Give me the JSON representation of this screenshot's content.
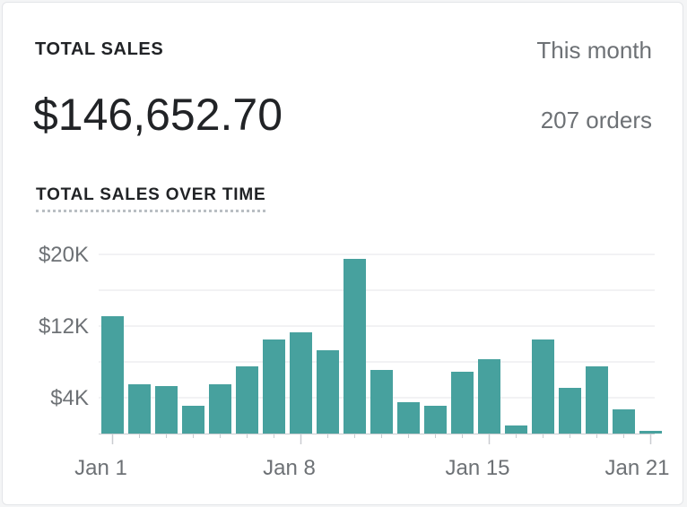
{
  "card": {
    "title": "TOTAL SALES",
    "period": "This month",
    "total": "$146,652.70",
    "orders": "207 orders",
    "chart_title": "TOTAL SALES OVER TIME"
  },
  "colors": {
    "bar": "#47a19e",
    "grid": "#e4e6e8",
    "axis": "#c9ccd0",
    "text_muted": "#6d7175"
  },
  "chart_data": {
    "type": "bar",
    "title": "TOTAL SALES OVER TIME",
    "categories": [
      "Jan 1",
      "Jan 2",
      "Jan 3",
      "Jan 4",
      "Jan 5",
      "Jan 6",
      "Jan 7",
      "Jan 8",
      "Jan 9",
      "Jan 10",
      "Jan 11",
      "Jan 12",
      "Jan 13",
      "Jan 14",
      "Jan 15",
      "Jan 16",
      "Jan 17",
      "Jan 18",
      "Jan 19",
      "Jan 20",
      "Jan 21"
    ],
    "values": [
      13100,
      5500,
      5300,
      3100,
      5500,
      7500,
      10500,
      11300,
      9300,
      19500,
      7100,
      3500,
      3100,
      6900,
      8300,
      900,
      10500,
      5100,
      7500,
      2700,
      300
    ],
    "ylim": [
      0,
      20000
    ],
    "yticks": [
      {
        "value": 4000,
        "label": "$4K"
      },
      {
        "value": 12000,
        "label": "$12K"
      },
      {
        "value": 20000,
        "label": "$20K"
      }
    ],
    "gridlines": [
      4000,
      8000,
      12000,
      16000,
      20000
    ],
    "xticks": [
      {
        "index": 0,
        "label": "Jan 1"
      },
      {
        "index": 7,
        "label": "Jan 8"
      },
      {
        "index": 14,
        "label": "Jan 15"
      },
      {
        "index": 20,
        "label": "Jan 21"
      }
    ],
    "grid": true,
    "legend": "none"
  }
}
